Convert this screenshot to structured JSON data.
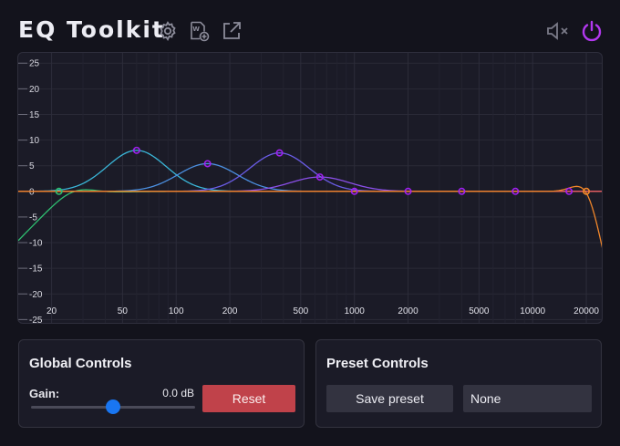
{
  "header": {
    "title": "EQ Toolkit",
    "icons": [
      "gear-icon",
      "wav-add-icon",
      "external-link-icon",
      "mute-icon",
      "power-icon"
    ],
    "power_color": "#b338f0"
  },
  "chart_data": {
    "type": "line",
    "x_scale": "log",
    "x_ticks": [
      "20",
      "50",
      "100",
      "200",
      "500",
      "1000",
      "2000",
      "5000",
      "10000",
      "20000"
    ],
    "x_tick_values": [
      20,
      50,
      100,
      200,
      500,
      1000,
      2000,
      5000,
      10000,
      20000
    ],
    "y_ticks": [
      "25",
      "20",
      "15",
      "10",
      "5",
      "0",
      "-5",
      "-10",
      "-15",
      "-20",
      "-25"
    ],
    "y_tick_values": [
      25,
      20,
      15,
      10,
      5,
      0,
      -5,
      -10,
      -15,
      -20,
      -25
    ],
    "xlim": [
      13,
      25000
    ],
    "ylim": [
      -26,
      27
    ],
    "grid": true,
    "bands": [
      {
        "type": "highpass",
        "freq": 22,
        "gain": 0,
        "color": "#2fbf71"
      },
      {
        "type": "peak",
        "freq": 60,
        "gain": 8,
        "color": "#3ab6d8"
      },
      {
        "type": "peak",
        "freq": 150,
        "gain": 5.4,
        "color": "#4b8fe0"
      },
      {
        "type": "peak",
        "freq": 380,
        "gain": 7.5,
        "color": "#6a5ce6"
      },
      {
        "type": "peak",
        "freq": 640,
        "gain": 2.8,
        "color": "#8a4fe8"
      },
      {
        "type": "peak",
        "freq": 1000,
        "gain": 0,
        "color": "#a040e6"
      },
      {
        "type": "peak",
        "freq": 2000,
        "gain": 0,
        "color": "#b83bd8"
      },
      {
        "type": "peak",
        "freq": 4000,
        "gain": 0,
        "color": "#c93cb5"
      },
      {
        "type": "peak",
        "freq": 8000,
        "gain": 0,
        "color": "#d84a8c"
      },
      {
        "type": "peak",
        "freq": 16000,
        "gain": 0,
        "color": "#e45f5c"
      },
      {
        "type": "lowpass",
        "freq": 20000,
        "gain": 0,
        "color": "#f0862a"
      }
    ],
    "handle_color": "#a020f0"
  },
  "global": {
    "title": "Global Controls",
    "gain_label": "Gain:",
    "gain_value": "0.0 dB",
    "gain_level": 0.5,
    "reset_label": "Reset"
  },
  "preset": {
    "title": "Preset Controls",
    "save_label": "Save preset",
    "selected": "None"
  }
}
